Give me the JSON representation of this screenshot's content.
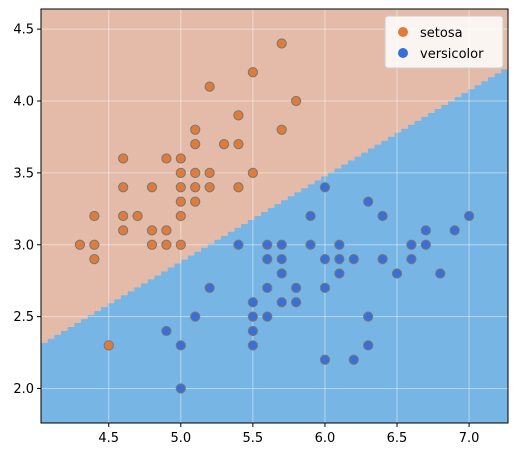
{
  "chart_data": {
    "type": "scatter",
    "title": "",
    "xlabel": "",
    "ylabel": "",
    "xlim": [
      4.03,
      7.27
    ],
    "ylim": [
      1.76,
      4.64
    ],
    "x_ticks": [
      4.5,
      5.0,
      5.5,
      6.0,
      6.5,
      7.0
    ],
    "x_tick_labels": [
      "4.5",
      "5.0",
      "5.5",
      "6.0",
      "6.5",
      "7.0"
    ],
    "y_ticks": [
      2.0,
      2.5,
      3.0,
      3.5,
      4.0,
      4.5
    ],
    "y_tick_labels": [
      "2.0",
      "2.5",
      "3.0",
      "3.5",
      "4.0",
      "4.5"
    ],
    "grid": true,
    "legend_position": "top-right",
    "decision_regions": [
      {
        "name": "setosa",
        "color": "#e4bba8"
      },
      {
        "name": "versicolor",
        "color": "#76b5e4"
      }
    ],
    "decision_boundary": {
      "x": [
        4.03,
        7.27
      ],
      "y": [
        2.29,
        4.22
      ]
    },
    "series": [
      {
        "name": "setosa",
        "color": "#e07b39",
        "edge_color": "#777777",
        "points": [
          [
            4.3,
            3.0
          ],
          [
            4.4,
            3.0
          ],
          [
            4.4,
            2.9
          ],
          [
            4.4,
            3.2
          ],
          [
            4.5,
            2.3
          ],
          [
            4.6,
            3.1
          ],
          [
            4.6,
            3.4
          ],
          [
            4.6,
            3.6
          ],
          [
            4.6,
            3.2
          ],
          [
            4.7,
            3.2
          ],
          [
            4.8,
            3.4
          ],
          [
            4.8,
            3.0
          ],
          [
            4.8,
            3.1
          ],
          [
            4.9,
            3.0
          ],
          [
            4.9,
            3.1
          ],
          [
            4.9,
            3.6
          ],
          [
            5.0,
            3.6
          ],
          [
            5.0,
            3.4
          ],
          [
            5.0,
            3.0
          ],
          [
            5.0,
            3.5
          ],
          [
            5.0,
            3.2
          ],
          [
            5.0,
            3.3
          ],
          [
            5.1,
            3.5
          ],
          [
            5.1,
            3.8
          ],
          [
            5.1,
            3.7
          ],
          [
            5.1,
            3.3
          ],
          [
            5.1,
            3.4
          ],
          [
            5.2,
            3.5
          ],
          [
            5.2,
            3.4
          ],
          [
            5.2,
            4.1
          ],
          [
            5.3,
            3.7
          ],
          [
            5.4,
            3.9
          ],
          [
            5.4,
            3.7
          ],
          [
            5.4,
            3.4
          ],
          [
            5.5,
            4.2
          ],
          [
            5.5,
            3.5
          ],
          [
            5.7,
            4.4
          ],
          [
            5.7,
            3.8
          ],
          [
            5.8,
            4.0
          ]
        ]
      },
      {
        "name": "versicolor",
        "color": "#3a6fd8",
        "edge_color": "#777777",
        "points": [
          [
            4.9,
            2.4
          ],
          [
            5.0,
            2.0
          ],
          [
            5.0,
            2.3
          ],
          [
            5.1,
            2.5
          ],
          [
            5.2,
            2.7
          ],
          [
            5.4,
            3.0
          ],
          [
            5.5,
            2.3
          ],
          [
            5.5,
            2.4
          ],
          [
            5.5,
            2.5
          ],
          [
            5.5,
            2.6
          ],
          [
            5.6,
            2.9
          ],
          [
            5.6,
            3.0
          ],
          [
            5.6,
            2.5
          ],
          [
            5.6,
            2.7
          ],
          [
            5.7,
            2.8
          ],
          [
            5.7,
            2.6
          ],
          [
            5.7,
            2.9
          ],
          [
            5.7,
            3.0
          ],
          [
            5.8,
            2.7
          ],
          [
            5.8,
            2.6
          ],
          [
            5.9,
            3.0
          ],
          [
            5.9,
            3.2
          ],
          [
            6.0,
            2.2
          ],
          [
            6.0,
            2.9
          ],
          [
            6.0,
            2.7
          ],
          [
            6.0,
            3.4
          ],
          [
            6.1,
            2.9
          ],
          [
            6.1,
            2.8
          ],
          [
            6.1,
            3.0
          ],
          [
            6.2,
            2.2
          ],
          [
            6.2,
            2.9
          ],
          [
            6.3,
            3.3
          ],
          [
            6.3,
            2.5
          ],
          [
            6.3,
            2.3
          ],
          [
            6.4,
            3.2
          ],
          [
            6.4,
            2.9
          ],
          [
            6.5,
            2.8
          ],
          [
            6.6,
            2.9
          ],
          [
            6.6,
            3.0
          ],
          [
            6.7,
            3.1
          ],
          [
            6.7,
            3.0
          ],
          [
            6.8,
            2.8
          ],
          [
            6.9,
            3.1
          ],
          [
            7.0,
            3.2
          ]
        ]
      }
    ]
  }
}
